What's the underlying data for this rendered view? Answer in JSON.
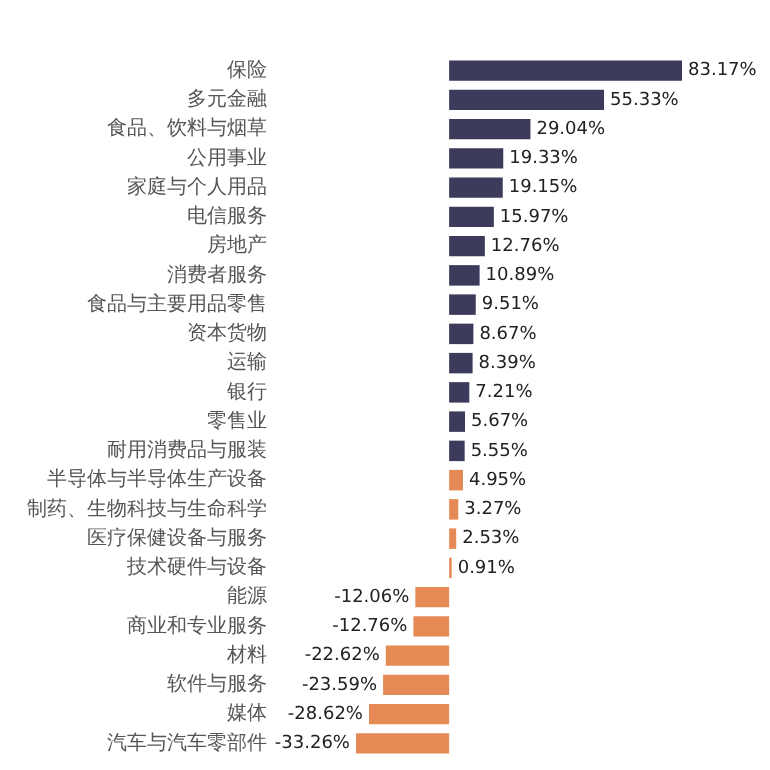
{
  "chart_data": {
    "type": "bar",
    "orientation": "horizontal",
    "tick_labels": "y",
    "categories": [
      "保险",
      "多元金融",
      "食品、饮料与烟草",
      "公用事业",
      "家庭与个人用品",
      "电信服务",
      "房地产",
      "消费者服务",
      "食品与主要用品零售",
      "资本货物",
      "运输",
      "银行",
      "零售业",
      "耐用消费品与服装",
      "半导体与半导体生产设备",
      "制药、生物科技与生命科学",
      "医疗保健设备与服务",
      "技术硬件与设备",
      "能源",
      "商业和专业服务",
      "材料",
      "软件与服务",
      "媒体",
      "汽车与汽车零部件"
    ],
    "values": [
      83.17,
      55.33,
      29.04,
      19.33,
      19.15,
      15.97,
      12.76,
      10.89,
      9.51,
      8.67,
      8.39,
      7.21,
      5.67,
      5.55,
      4.95,
      3.27,
      2.53,
      0.91,
      -12.06,
      -12.76,
      -22.62,
      -23.59,
      -28.62,
      -33.26
    ],
    "value_labels": [
      "83.17%",
      "55.33%",
      "29.04%",
      "19.33%",
      "19.15%",
      "15.97%",
      "12.76%",
      "10.89%",
      "9.51%",
      "8.67%",
      "8.39%",
      "7.21%",
      "5.67%",
      "5.55%",
      "4.95%",
      "3.27%",
      "2.53%",
      "0.91%",
      "-12.06%",
      "-12.76%",
      "-22.62%",
      "-23.59%",
      "-28.62%",
      "-33.26%"
    ],
    "colors": [
      "#3d3b5b",
      "#3d3b5b",
      "#3d3b5b",
      "#3d3b5b",
      "#3d3b5b",
      "#3d3b5b",
      "#3d3b5b",
      "#3d3b5b",
      "#3d3b5b",
      "#3d3b5b",
      "#3d3b5b",
      "#3d3b5b",
      "#3d3b5b",
      "#3d3b5b",
      "#e58a55",
      "#e58a55",
      "#e58a55",
      "#e58a55",
      "#e58a55",
      "#e58a55",
      "#e58a55",
      "#e58a55",
      "#e58a55",
      "#e58a55"
    ]
  }
}
